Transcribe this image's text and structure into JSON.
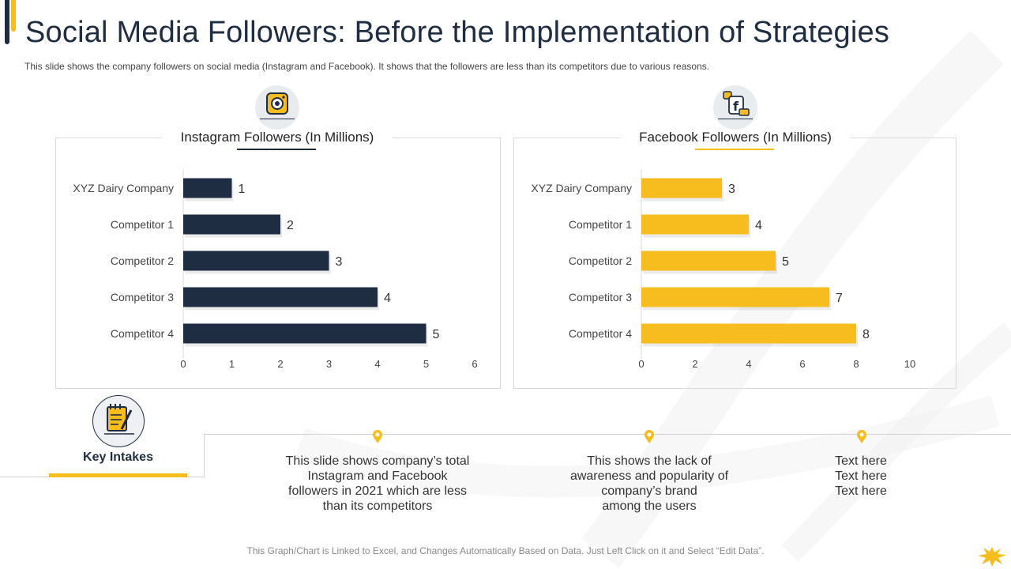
{
  "slide": {
    "title": "Social Media Followers: Before the Implementation of Strategies",
    "subtitle": "This slide shows the company followers on social media (Instagram and Facebook). It shows that the followers  are less than its competitors due to various  reasons.",
    "footer": "This Graph/Chart is Linked to Excel, and Changes Automatically Based on Data. Just Left Click on it and Select “Edit Data”."
  },
  "colors": {
    "navy": "#1f2d42",
    "yellow": "#f7bd1e",
    "axis": "#d9d9d9",
    "label": "#444444"
  },
  "icons": {
    "instagram": "instagram-icon",
    "facebook": "facebook-icon",
    "key_intakes": "notepad-icon",
    "pin": "location-pin-icon",
    "brand": "splat-logo-icon"
  },
  "chart_data": [
    {
      "id": "instagram",
      "type": "bar",
      "orientation": "horizontal",
      "title": "Instagram Followers (In Millions)",
      "categories": [
        "XYZ Dairy Company",
        "Competitor 1",
        "Competitor 2",
        "Competitor 3",
        "Competitor 4"
      ],
      "values": [
        1,
        2,
        3,
        4,
        5
      ],
      "xlim": [
        0,
        6
      ],
      "xticks": [
        0,
        1,
        2,
        3,
        4,
        5,
        6
      ],
      "color": "#1f2d42",
      "grid": false,
      "data_labels": true
    },
    {
      "id": "facebook",
      "type": "bar",
      "orientation": "horizontal",
      "title": "Facebook Followers (In Millions)",
      "categories": [
        "XYZ Dairy Company",
        "Competitor 1",
        "Competitor 2",
        "Competitor 3",
        "Competitor 4"
      ],
      "values": [
        3,
        4,
        5,
        7,
        8
      ],
      "xlim": [
        0,
        10
      ],
      "xticks": [
        0,
        2,
        4,
        6,
        8,
        10
      ],
      "color": "#f7bd1e",
      "grid": false,
      "data_labels": true
    }
  ],
  "key_intakes": {
    "label": "Key Intakes",
    "items": [
      {
        "lines": [
          "This slide shows company’s total",
          "Instagram and Facebook",
          "followers in 2021 which are less",
          "than its competitors"
        ]
      },
      {
        "lines": [
          "This shows the lack of",
          "awareness and popularity of",
          "company’s brand",
          "among the users"
        ]
      },
      {
        "lines": [
          "Text here",
          "Text here",
          "Text here"
        ]
      }
    ]
  }
}
